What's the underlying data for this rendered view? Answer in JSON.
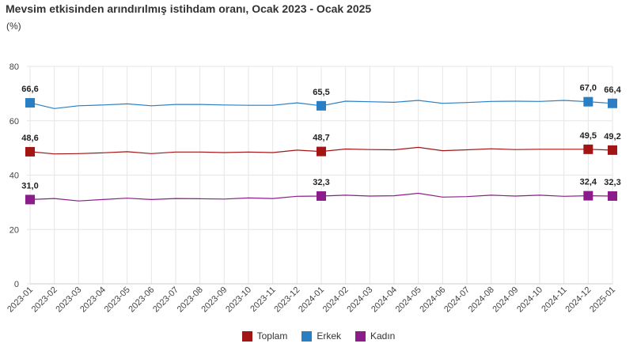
{
  "title": "Mevsim etkisinden arındırılmış istihdam oranı, Ocak 2023 - Ocak 2025",
  "unit": "(%)",
  "chart_data": {
    "type": "line",
    "x": [
      "2023-01",
      "2023-02",
      "2023-03",
      "2023-04",
      "2023-05",
      "2023-06",
      "2023-07",
      "2023-08",
      "2023-09",
      "2023-10",
      "2023-11",
      "2023-12",
      "2024-01",
      "2024-02",
      "2024-03",
      "2024-04",
      "2024-05",
      "2024-06",
      "2024-07",
      "2024-08",
      "2024-09",
      "2024-10",
      "2024-11",
      "2024-12",
      "2025-01"
    ],
    "ylim": [
      0,
      80
    ],
    "yticks": [
      "0",
      "20",
      "40",
      "60",
      "80"
    ],
    "grid": true,
    "legend_position": "bottom",
    "series": [
      {
        "name": "Toplam",
        "color": "#a31515",
        "values": [
          48.6,
          47.8,
          47.9,
          48.2,
          48.6,
          47.9,
          48.5,
          48.5,
          48.3,
          48.5,
          48.3,
          49.2,
          48.7,
          49.6,
          49.4,
          49.3,
          50.2,
          49.0,
          49.3,
          49.7,
          49.4,
          49.5,
          49.5,
          49.5,
          49.2
        ],
        "labels": {
          "0": "48,6",
          "12": "48,7",
          "23": "49,5",
          "24": "49,2"
        }
      },
      {
        "name": "Erkek",
        "color": "#2a7fc4",
        "values": [
          66.6,
          64.5,
          65.5,
          65.8,
          66.2,
          65.5,
          66.0,
          66.0,
          65.8,
          65.7,
          65.7,
          66.6,
          65.5,
          67.2,
          67.0,
          66.8,
          67.5,
          66.4,
          66.7,
          67.1,
          67.2,
          67.1,
          67.5,
          67.0,
          66.4
        ],
        "labels": {
          "0": "66,6",
          "12": "65,5",
          "23": "67,0",
          "24": "66,4"
        }
      },
      {
        "name": "Kadın",
        "color": "#8b1d8b",
        "values": [
          31.0,
          31.4,
          30.5,
          31.0,
          31.5,
          31.0,
          31.4,
          31.3,
          31.2,
          31.6,
          31.4,
          32.2,
          32.3,
          32.6,
          32.3,
          32.4,
          33.3,
          31.9,
          32.1,
          32.6,
          32.3,
          32.6,
          32.2,
          32.4,
          32.3
        ],
        "labels": {
          "0": "31,0",
          "12": "32,3",
          "23": "32,4",
          "24": "32,3"
        }
      }
    ]
  }
}
